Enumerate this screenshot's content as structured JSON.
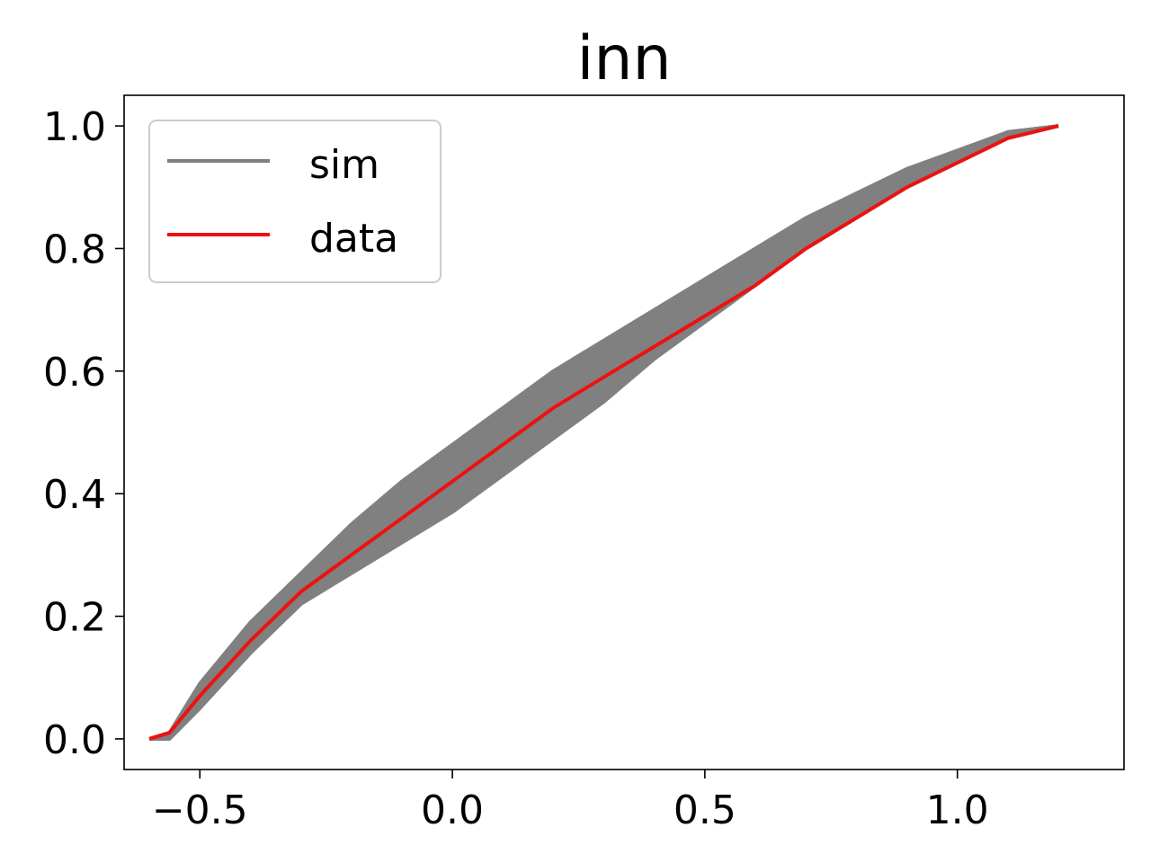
{
  "chart_data": {
    "type": "line",
    "title": "inn",
    "xlabel": "",
    "ylabel": "",
    "xlim": [
      -0.65,
      1.33
    ],
    "ylim": [
      -0.05,
      1.05
    ],
    "xticks": [
      -0.5,
      0.0,
      0.5,
      1.0
    ],
    "xtick_labels": [
      "−0.5",
      "0.0",
      "0.5",
      "1.0"
    ],
    "yticks": [
      0.0,
      0.2,
      0.4,
      0.6,
      0.8,
      1.0
    ],
    "ytick_labels": [
      "0.0",
      "0.2",
      "0.4",
      "0.6",
      "0.8",
      "1.0"
    ],
    "grid": false,
    "legend": {
      "location": "upper left",
      "entries": [
        "sim",
        "data"
      ]
    },
    "colors": {
      "sim": "#808080",
      "data": "#ee1111"
    },
    "x": [
      -0.6,
      -0.56,
      -0.5,
      -0.4,
      -0.3,
      -0.2,
      -0.1,
      0.0,
      0.1,
      0.2,
      0.3,
      0.4,
      0.5,
      0.6,
      0.7,
      0.8,
      0.9,
      1.0,
      1.1,
      1.2
    ],
    "series": [
      {
        "name": "sim",
        "values": [
          0.0,
          0.01,
          0.09,
          0.19,
          0.27,
          0.35,
          0.42,
          0.48,
          0.54,
          0.6,
          0.65,
          0.7,
          0.75,
          0.8,
          0.85,
          0.89,
          0.93,
          0.96,
          0.99,
          1.0
        ]
      },
      {
        "name": "",
        "values": [
          0.0,
          0.0,
          0.05,
          0.14,
          0.22,
          0.28,
          0.33,
          0.38,
          0.45,
          0.51,
          0.57,
          0.63,
          0.69,
          0.75,
          0.8,
          0.85,
          0.9,
          0.94,
          0.98,
          1.0
        ]
      },
      {
        "name": "",
        "values": [
          0.0,
          0.0,
          0.06,
          0.15,
          0.23,
          0.3,
          0.36,
          0.42,
          0.48,
          0.54,
          0.6,
          0.65,
          0.7,
          0.76,
          0.81,
          0.86,
          0.9,
          0.95,
          0.98,
          1.0
        ]
      },
      {
        "name": "",
        "values": [
          0.0,
          0.01,
          0.08,
          0.18,
          0.26,
          0.33,
          0.4,
          0.46,
          0.52,
          0.58,
          0.63,
          0.68,
          0.73,
          0.78,
          0.83,
          0.88,
          0.92,
          0.95,
          0.99,
          1.0
        ]
      },
      {
        "name": "",
        "values": [
          0.0,
          0.0,
          0.05,
          0.14,
          0.22,
          0.27,
          0.32,
          0.37,
          0.43,
          0.49,
          0.55,
          0.62,
          0.68,
          0.74,
          0.8,
          0.85,
          0.9,
          0.94,
          0.98,
          1.0
        ]
      },
      {
        "name": "",
        "values": [
          0.0,
          0.01,
          0.07,
          0.16,
          0.24,
          0.31,
          0.38,
          0.44,
          0.5,
          0.56,
          0.62,
          0.67,
          0.72,
          0.77,
          0.82,
          0.87,
          0.91,
          0.95,
          0.99,
          1.0
        ]
      },
      {
        "name": "data",
        "values": [
          0.0,
          0.01,
          0.07,
          0.16,
          0.24,
          0.3,
          0.36,
          0.42,
          0.48,
          0.54,
          0.59,
          0.64,
          0.69,
          0.74,
          0.8,
          0.85,
          0.9,
          0.94,
          0.98,
          1.0
        ]
      }
    ]
  }
}
